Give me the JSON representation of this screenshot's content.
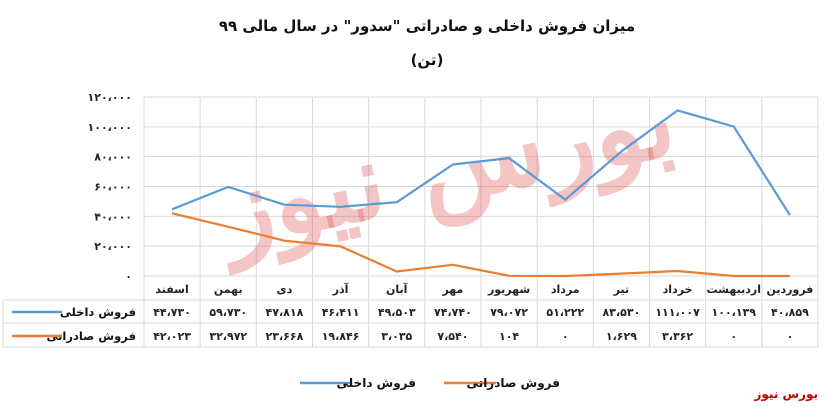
{
  "chart_data": {
    "type": "line",
    "title": "میزان فروش داخلی و صادراتی \"سدور\" در سال مالی ۹۹",
    "subtitle": "(تن)",
    "categories": [
      "فروردین",
      "اردیبهشت",
      "خرداد",
      "تیر",
      "مرداد",
      "شهریور",
      "مهر",
      "آبان",
      "آذر",
      "دی",
      "بهمن",
      "اسفند"
    ],
    "series": [
      {
        "name": "فروش داخلی",
        "color": "#5b9bd5",
        "values": [
          40859,
          100139,
          111007,
          83530,
          51222,
          79072,
          74740,
          49503,
          46411,
          47818,
          59730,
          44730
        ],
        "labels": [
          "۴۰،۸۵۹",
          "۱۰۰،۱۳۹",
          "۱۱۱،۰۰۷",
          "۸۳،۵۳۰",
          "۵۱،۲۲۲",
          "۷۹،۰۷۲",
          "۷۴،۷۴۰",
          "۴۹،۵۰۳",
          "۴۶،۴۱۱",
          "۴۷،۸۱۸",
          "۵۹،۷۳۰",
          "۴۴،۷۳۰"
        ]
      },
      {
        "name": "فروش صادراتی",
        "color": "#ed7d31",
        "values": [
          0,
          0,
          3362,
          1629,
          0,
          104,
          7540,
          3035,
          19846,
          23668,
          32972,
          42023
        ],
        "labels": [
          "۰",
          "۰",
          "۳،۳۶۲",
          "۱،۶۲۹",
          "۰",
          "۱۰۴",
          "۷،۵۴۰",
          "۳،۰۳۵",
          "۱۹،۸۴۶",
          "۲۳،۶۶۸",
          "۳۲،۹۷۲",
          "۴۲،۰۲۳"
        ]
      }
    ],
    "ylim": [
      0,
      120000
    ],
    "yticks": [
      0,
      20000,
      40000,
      60000,
      80000,
      100000,
      120000
    ],
    "ytick_labels": [
      "۰",
      "۲۰،۰۰۰",
      "۴۰،۰۰۰",
      "۶۰،۰۰۰",
      "۸۰،۰۰۰",
      "۱۰۰،۰۰۰",
      "۱۲۰،۰۰۰"
    ],
    "grid": true,
    "data_table": true,
    "legend_position": "bottom",
    "watermark": "بورس نیوز",
    "source": "بورس نیوز"
  }
}
